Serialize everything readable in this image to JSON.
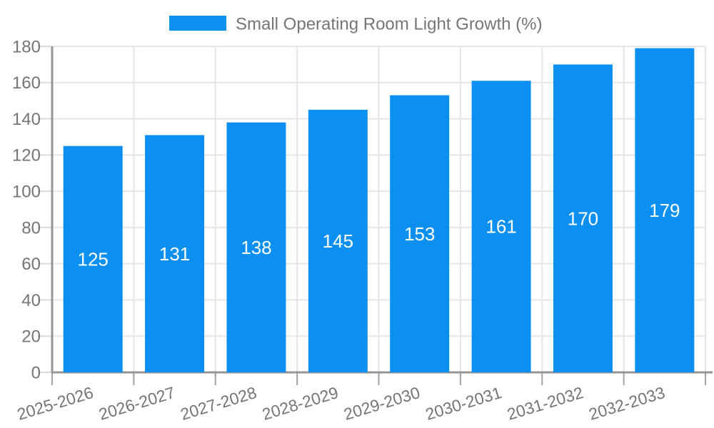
{
  "chart_data": {
    "type": "bar",
    "title": "Small Operating Room Light Growth (%)",
    "legend": [
      "Small Operating Room Light Growth (%)"
    ],
    "legend_position": "top-center",
    "categories": [
      "2025-2026",
      "2026-2027",
      "2027-2028",
      "2028-2029",
      "2029-2030",
      "2030-2031",
      "2031-2032",
      "2032-2033"
    ],
    "values": [
      125,
      131,
      138,
      145,
      153,
      161,
      170,
      179
    ],
    "bar_value_labels": [
      "125",
      "131",
      "138",
      "145",
      "153",
      "161",
      "170",
      "179"
    ],
    "xlabel": "",
    "ylabel": "",
    "ylim": [
      0,
      180
    ],
    "ytick_step": 20,
    "yticks": [
      0,
      20,
      40,
      60,
      80,
      100,
      120,
      140,
      160,
      180
    ],
    "grid": true,
    "x_label_rotation_deg": -17
  },
  "colors": {
    "bar": "#0b90f2",
    "grid": "#e6e6e6",
    "grid_stub": "#d9d9d9",
    "axis_line": "#969696",
    "tick": "#a3a3a3",
    "text": "#757575",
    "value_label": "#ffffff",
    "background": "#ffffff"
  }
}
